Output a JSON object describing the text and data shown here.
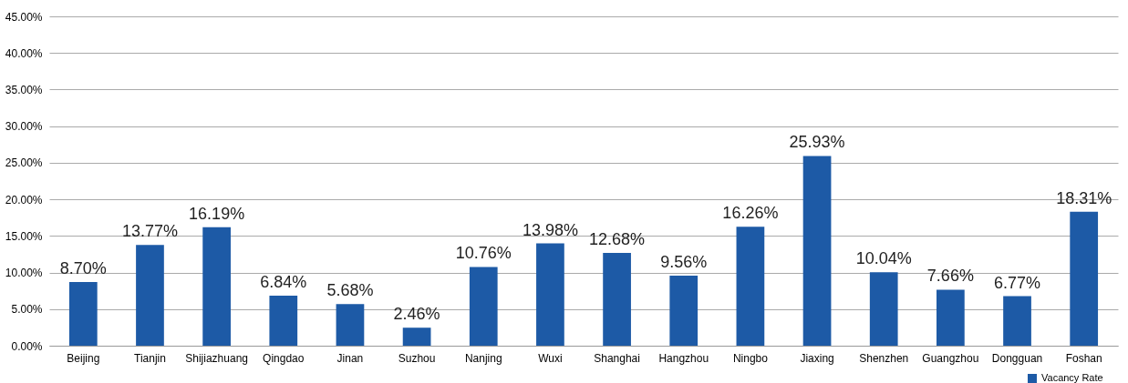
{
  "chart_data": {
    "type": "bar",
    "categories": [
      "Beijing",
      "Tianjin",
      "Shijiazhuang",
      "Qingdao",
      "Jinan",
      "Suzhou",
      "Nanjing",
      "Wuxi",
      "Shanghai",
      "Hangzhou",
      "Ningbo",
      "Jiaxing",
      "Shenzhen",
      "Guangzhou",
      "Dongguan",
      "Foshan"
    ],
    "series": [
      {
        "name": "Vacancy Rate",
        "color": "#1d5aa6",
        "values": [
          8.7,
          13.77,
          16.19,
          6.84,
          5.68,
          2.46,
          10.76,
          13.98,
          12.68,
          9.56,
          16.26,
          25.93,
          10.04,
          7.66,
          6.77,
          18.31
        ],
        "value_labels": [
          "8.70%",
          "13.77%",
          "16.19%",
          "6.84%",
          "5.68%",
          "2.46%",
          "10.76%",
          "13.98%",
          "12.68%",
          "9.56%",
          "16.26%",
          "25.93%",
          "10.04%",
          "7.66%",
          "6.77%",
          "18.31%"
        ]
      }
    ],
    "ylim": [
      0,
      45
    ],
    "yticks": [
      {
        "value": 0,
        "label": "0.00%"
      },
      {
        "value": 5,
        "label": "5.00%"
      },
      {
        "value": 10,
        "label": "10.00%"
      },
      {
        "value": 15,
        "label": "15.00%"
      },
      {
        "value": 20,
        "label": "20.00%"
      },
      {
        "value": 25,
        "label": "25.00%"
      },
      {
        "value": 30,
        "label": "30.00%"
      },
      {
        "value": 35,
        "label": "35.00%"
      },
      {
        "value": 40,
        "label": "40.00%"
      },
      {
        "value": 45,
        "label": "45.00%"
      }
    ],
    "grid": "y",
    "legend": "bottom right"
  }
}
